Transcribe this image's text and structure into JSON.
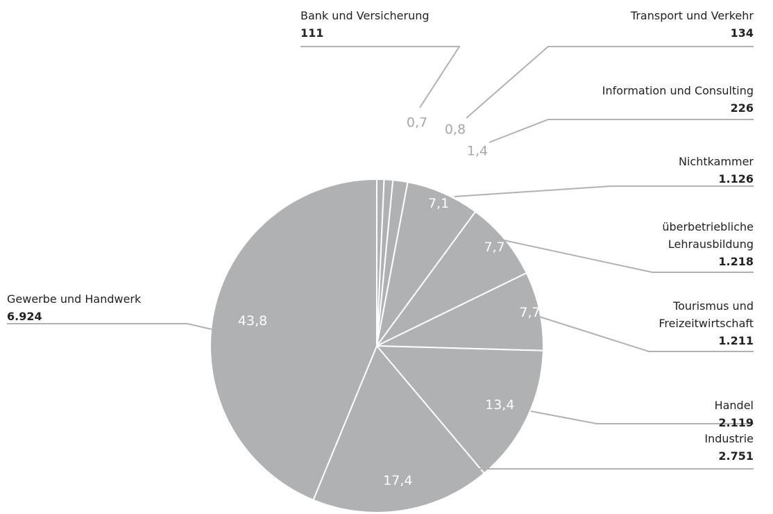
{
  "chart_data": {
    "type": "pie",
    "categories": [
      "Bank und Versicherung",
      "Transport und Verkehr",
      "Information und Consulting",
      "Nichtkammer",
      "überbetriebliche\nLehrausbildung",
      "Tourismus und\nFreizeitwirtschaft",
      "Handel",
      "Industrie",
      "Gewerbe und Handwerk"
    ],
    "values": [
      0.7,
      0.8,
      1.4,
      7.1,
      7.7,
      7.7,
      13.4,
      17.4,
      43.8
    ],
    "value_labels": [
      "0,7",
      "0,8",
      "1,4",
      "7,1",
      "7,7",
      "7,7",
      "13,4",
      "17,4",
      "43,8"
    ],
    "counts": [
      111,
      134,
      226,
      1126,
      1218,
      1211,
      2119,
      2751,
      6924
    ],
    "count_labels": [
      "111",
      "134",
      "226",
      "1.126",
      "1.218",
      "1.211",
      "2.119",
      "2.751",
      "6.924"
    ],
    "color": "#b0b1b3"
  }
}
